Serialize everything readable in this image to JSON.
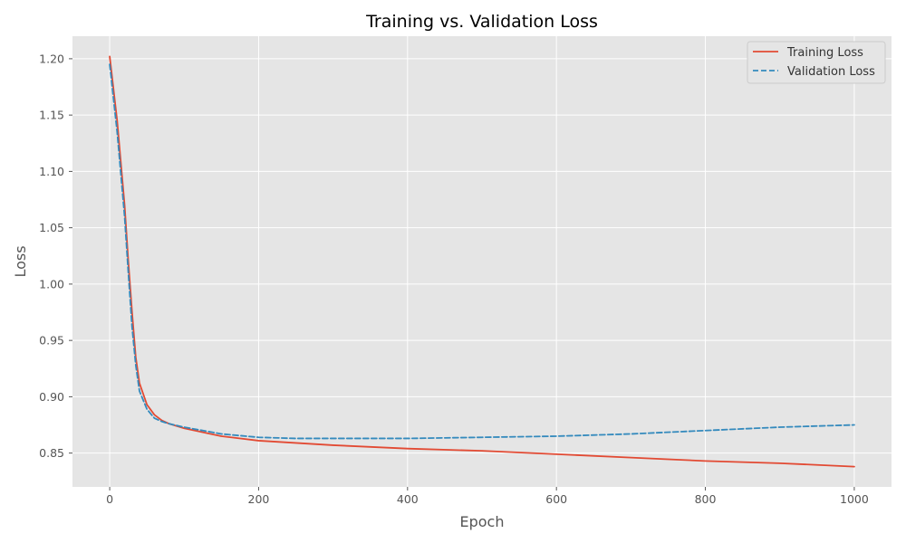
{
  "chart_data": {
    "type": "line",
    "title": "Training vs. Validation Loss",
    "xlabel": "Epoch",
    "ylabel": "Loss",
    "xlim": [
      -50,
      1050
    ],
    "ylim": [
      0.82,
      1.22
    ],
    "xticks": [
      0,
      200,
      400,
      600,
      800,
      1000
    ],
    "xtick_labels": [
      "0",
      "200",
      "400",
      "600",
      "800",
      "1000"
    ],
    "yticks": [
      0.85,
      0.9,
      0.95,
      1.0,
      1.05,
      1.1,
      1.15,
      1.2
    ],
    "ytick_labels": [
      "0.85",
      "0.90",
      "0.95",
      "1.00",
      "1.05",
      "1.10",
      "1.15",
      "1.20"
    ],
    "grid": true,
    "legend_position": "top-right",
    "background": "#e5e5e5",
    "series": [
      {
        "name": "Training Loss",
        "color": "#e24a33",
        "style": "solid",
        "x": [
          0,
          10,
          20,
          25,
          30,
          35,
          40,
          50,
          60,
          70,
          80,
          100,
          150,
          200,
          300,
          400,
          500,
          600,
          700,
          800,
          900,
          1000
        ],
        "y": [
          1.202,
          1.145,
          1.07,
          1.02,
          0.975,
          0.935,
          0.912,
          0.893,
          0.884,
          0.879,
          0.876,
          0.872,
          0.865,
          0.861,
          0.857,
          0.854,
          0.852,
          0.849,
          0.846,
          0.843,
          0.841,
          0.838
        ]
      },
      {
        "name": "Validation Loss",
        "color": "#348abd",
        "style": "dashed",
        "x": [
          0,
          10,
          20,
          25,
          30,
          35,
          40,
          50,
          60,
          70,
          80,
          100,
          150,
          200,
          250,
          300,
          400,
          500,
          600,
          700,
          800,
          900,
          1000
        ],
        "y": [
          1.195,
          1.135,
          1.06,
          1.01,
          0.962,
          0.928,
          0.905,
          0.889,
          0.881,
          0.878,
          0.876,
          0.873,
          0.867,
          0.864,
          0.863,
          0.863,
          0.863,
          0.864,
          0.865,
          0.867,
          0.87,
          0.873,
          0.875
        ]
      }
    ]
  }
}
